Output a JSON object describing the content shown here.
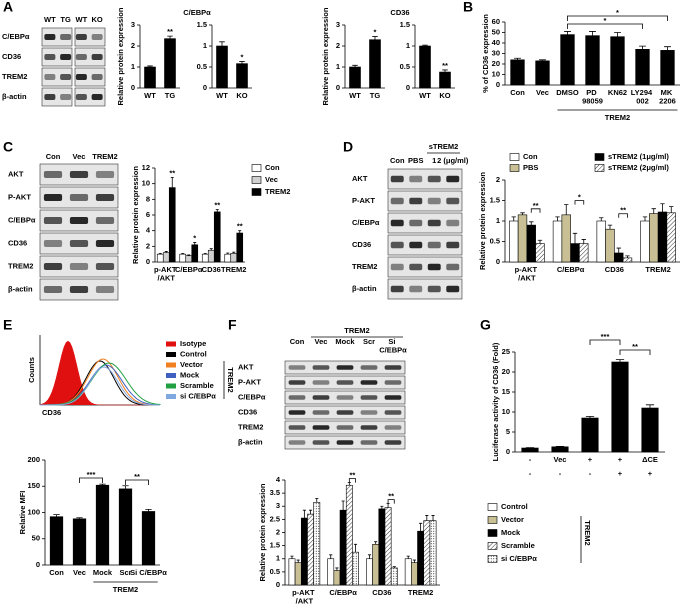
{
  "panels": [
    "A",
    "B",
    "C",
    "D",
    "E",
    "F",
    "G"
  ],
  "blots": [
    {
      "columns": [
        "WT",
        "TG",
        "WT",
        "KO"
      ],
      "rows": [
        "C/EBPα",
        "CD36",
        "TREM2",
        "β-actin"
      ]
    },
    {
      "columns": [
        "Con",
        "Vec",
        "TREM2"
      ],
      "rows": [
        "AKT",
        "P-AKT",
        "C/EBPα",
        "CD36",
        "TREM2",
        "β-actin"
      ]
    },
    {
      "header": "sTREM2",
      "columns": [
        "Con",
        "PBS",
        "1",
        "2 (μg/ml)"
      ],
      "rows": [
        "AKT",
        "P-AKT",
        "C/EBPα",
        "CD36",
        "TREM2",
        "β-actin"
      ]
    },
    {
      "header": "TREM2",
      "columns": [
        "Con",
        "Vec",
        "Mock",
        "Scr",
        "Si C/EBPα"
      ],
      "rows": [
        "AKT",
        "P-AKT",
        "C/EBPα",
        "CD36",
        "TREM2",
        "β-actin"
      ]
    }
  ],
  "flow": {
    "ylabel": "Counts",
    "xlabel": "CD36",
    "legend_group": "TREM2",
    "legend": [
      {
        "name": "Isotype",
        "color": "#e01010"
      },
      {
        "name": "Control",
        "color": "#000000"
      },
      {
        "name": "Vector",
        "color": "#f08020"
      },
      {
        "name": "Mock",
        "color": "#4060c0"
      },
      {
        "name": "Scramble",
        "color": "#20a040"
      },
      {
        "name": "si C/EBPα",
        "color": "#80a8e0"
      }
    ]
  },
  "chart_data": [
    {
      "type": "bar",
      "title": "C/EBPα",
      "ylabel": "Relative protein expression",
      "categories": [
        "WT",
        "TG"
      ],
      "values": [
        1,
        2.35
      ],
      "errors": [
        0.05,
        0.12
      ],
      "color": "#000000",
      "ylim": [
        0,
        3
      ],
      "yticks": [
        0,
        1,
        2,
        3
      ],
      "annotations": [
        null,
        "**"
      ]
    },
    {
      "type": "bar",
      "categories": [
        "WT",
        "KO"
      ],
      "values": [
        1,
        0.58
      ],
      "errors": [
        0.1,
        0.05
      ],
      "color": "#000000",
      "ylim": [
        0,
        1.5
      ],
      "yticks": [
        0,
        0.5,
        1,
        1.5
      ],
      "annotations": [
        null,
        "*"
      ]
    },
    {
      "type": "bar",
      "title": "CD36",
      "ylabel": "Relative protein expression",
      "categories": [
        "WT",
        "TG"
      ],
      "values": [
        1,
        2.3
      ],
      "errors": [
        0.08,
        0.15
      ],
      "color": "#000000",
      "ylim": [
        0,
        3
      ],
      "yticks": [
        0,
        1,
        2,
        3
      ],
      "annotations": [
        null,
        "*"
      ]
    },
    {
      "type": "bar",
      "categories": [
        "WT",
        "KO"
      ],
      "values": [
        1,
        0.38
      ],
      "errors": [
        0.02,
        0.05
      ],
      "color": "#000000",
      "ylim": [
        0,
        1.5
      ],
      "yticks": [
        0,
        0.5,
        1,
        1.5
      ],
      "annotations": [
        null,
        "**"
      ]
    },
    {
      "type": "bar",
      "ylabel": "% of CD36 expression",
      "categories": [
        "Con",
        "Vec",
        "DMSO",
        "PD 98059",
        "KN62",
        "LY294 002",
        "MK 2206"
      ],
      "values": [
        24,
        23,
        48,
        47,
        46,
        34,
        33
      ],
      "errors": [
        1.5,
        1,
        3,
        4,
        4,
        3,
        3.5
      ],
      "color": "#000000",
      "ylim": [
        0,
        60
      ],
      "yticks": [
        0,
        10,
        20,
        30,
        40,
        50,
        60
      ],
      "annotations": [
        null,
        null,
        null,
        null,
        null,
        "*",
        "*"
      ],
      "group_label": "TREM2"
    },
    {
      "type": "bar",
      "ylabel": "Relative protein expression",
      "categories": [
        "p-AKT /AKT",
        "C/EBPα",
        "CD36",
        "TREM2"
      ],
      "ylim": [
        0,
        12
      ],
      "yticks": [
        0,
        2,
        4,
        6,
        8,
        10,
        12
      ],
      "annotations": [
        "**",
        "*",
        "**",
        "**"
      ],
      "series": [
        {
          "name": "Con",
          "color": "#ffffff",
          "values": [
            1,
            1,
            1,
            1
          ],
          "errors": [
            0.1,
            0.1,
            0.1,
            0.15
          ]
        },
        {
          "name": "Vec",
          "color": "#d0d0d0",
          "values": [
            1.2,
            0.8,
            1.5,
            1.1
          ],
          "errors": [
            0.15,
            0.1,
            0.2,
            0.15
          ]
        },
        {
          "name": "TREM2",
          "color": "#000000",
          "values": [
            9.5,
            2.2,
            6.4,
            3.7
          ],
          "errors": [
            1.3,
            0.3,
            0.3,
            0.3
          ]
        }
      ]
    },
    {
      "type": "bar",
      "ylabel": "Relative protein expression",
      "categories": [
        "p-AKT /AKT",
        "C/EBPα",
        "CD36",
        "TREM2"
      ],
      "ylim": [
        0,
        2
      ],
      "yticks": [
        0,
        0.5,
        1,
        1.5,
        2
      ],
      "annotations": [
        "**",
        "*",
        "**",
        null
      ],
      "series": [
        {
          "name": "Con",
          "color": "#ffffff",
          "values": [
            1,
            1,
            1,
            1
          ],
          "errors": [
            0.1,
            0.1,
            0.08,
            0.1
          ]
        },
        {
          "name": "PBS",
          "color": "#c8bf94",
          "values": [
            1.15,
            1.15,
            0.8,
            1.18
          ],
          "errors": [
            0.05,
            0.25,
            0.1,
            0.12
          ]
        },
        {
          "name": "sTREM2 (1μg/ml)",
          "color": "#000000",
          "values": [
            0.9,
            0.45,
            0.22,
            1.22
          ],
          "errors": [
            0.08,
            0.25,
            0.12,
            0.2
          ]
        },
        {
          "name": "sTREM2 (2μg/ml)",
          "color": "#ffffff",
          "pattern": "hatch",
          "values": [
            0.45,
            0.45,
            0.1,
            1.2
          ],
          "errors": [
            0.08,
            0.1,
            0.05,
            0.15
          ]
        }
      ]
    },
    {
      "type": "bar",
      "ylabel": "Relative MFI",
      "categories": [
        "Con",
        "Vec",
        "Mock",
        "Scr",
        "Si C/EBPα"
      ],
      "values": [
        92,
        88,
        152,
        145,
        102
      ],
      "errors": [
        4,
        2,
        2,
        6,
        4
      ],
      "color": "#000000",
      "ylim": [
        0,
        200
      ],
      "yticks": [
        0,
        50,
        100,
        150,
        200
      ],
      "annotations": [
        null,
        null,
        "***",
        null,
        "**"
      ],
      "group_label": "TREM2"
    },
    {
      "type": "bar",
      "ylabel": "Relative protein expression",
      "categories": [
        "p-AKT /AKT",
        "C/EBPα",
        "CD36",
        "TREM2"
      ],
      "ylim": [
        0,
        4
      ],
      "yticks": [
        0,
        0.5,
        1,
        1.5,
        2,
        2.5,
        3,
        3.5,
        4
      ],
      "annotations": [
        null,
        "**",
        "**",
        null
      ],
      "legend_group": "TREM2",
      "series": [
        {
          "name": "Control",
          "color": "#ffffff",
          "values": [
            1,
            1,
            1,
            1
          ],
          "errors": [
            0.1,
            0.15,
            0.15,
            0.1
          ]
        },
        {
          "name": "Vector",
          "color": "#c8bf94",
          "values": [
            0.85,
            0.55,
            1.55,
            0.85
          ],
          "errors": [
            0.1,
            0.1,
            0.1,
            0.1
          ]
        },
        {
          "name": "Mock",
          "color": "#000000",
          "values": [
            2.55,
            2.85,
            2.9,
            2.05
          ],
          "errors": [
            0.3,
            0.35,
            0.1,
            0.3
          ]
        },
        {
          "name": "Scramble",
          "color": "#ffffff",
          "pattern": "hatch",
          "values": [
            2.7,
            3.8,
            2.95,
            2.45
          ],
          "errors": [
            0.15,
            0.1,
            0.15,
            0.2
          ]
        },
        {
          "name": "si C/EBPα",
          "color": "#ffffff",
          "pattern": "dots",
          "values": [
            3.15,
            1.25,
            0.65,
            2.45
          ],
          "errors": [
            0.15,
            0.3,
            0.05,
            0.2
          ]
        }
      ]
    },
    {
      "type": "bar",
      "ylabel": "Luciferase activity of CD36 (Fold)",
      "categories": [
        "-",
        "Vec",
        "+",
        "+",
        "ΔCE"
      ],
      "categories2": [
        "-",
        "-",
        "-",
        "+",
        "+"
      ],
      "values": [
        1,
        1.3,
        8.5,
        22.5,
        11
      ],
      "errors": [
        0.1,
        0.1,
        0.4,
        0.6,
        0.8
      ],
      "color": "#000000",
      "ylim": [
        0,
        25
      ],
      "yticks": [
        0,
        5,
        10,
        15,
        20,
        25
      ],
      "annotations": [
        null,
        null,
        null,
        "***",
        "**"
      ]
    }
  ]
}
